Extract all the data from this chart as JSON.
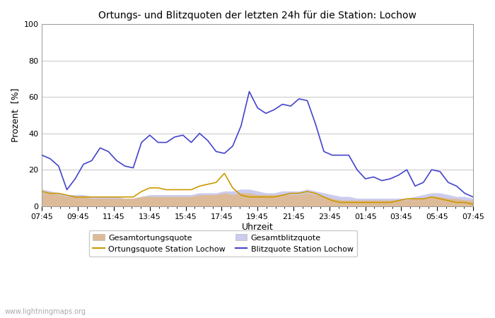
{
  "title": "Ortungs- und Blitzquoten der letzten 24h für die Station: Lochow",
  "xlabel": "Uhrzeit",
  "ylabel": "Prozent  [%]",
  "watermark": "www.lightningmaps.org",
  "x_ticks": [
    "07:45",
    "09:45",
    "11:45",
    "13:45",
    "15:45",
    "17:45",
    "19:45",
    "21:45",
    "23:45",
    "01:45",
    "03:45",
    "05:45",
    "07:45"
  ],
  "ylim": [
    0,
    100
  ],
  "yticks": [
    0,
    20,
    40,
    60,
    80,
    100
  ],
  "blitzquote_station": [
    28,
    26,
    22,
    9,
    15,
    23,
    25,
    32,
    30,
    25,
    22,
    21,
    35,
    39,
    35,
    35,
    38,
    39,
    35,
    40,
    36,
    30,
    29,
    33,
    44,
    63,
    54,
    51,
    53,
    56,
    55,
    59,
    58,
    45,
    30,
    28,
    28,
    28,
    20,
    15,
    16,
    14,
    15,
    17,
    20,
    11,
    13,
    20,
    19,
    13,
    11,
    7,
    5
  ],
  "ortungsquote_station": [
    8,
    7,
    7,
    6,
    5,
    5,
    5,
    5,
    5,
    5,
    5,
    5,
    8,
    10,
    10,
    9,
    9,
    9,
    9,
    11,
    12,
    13,
    18,
    10,
    6,
    5,
    5,
    5,
    5,
    6,
    7,
    7,
    8,
    7,
    5,
    3,
    2,
    2,
    2,
    2,
    2,
    2,
    2,
    3,
    4,
    4,
    4,
    5,
    4,
    3,
    2,
    2,
    1
  ],
  "gesamtblitzquote": [
    9,
    8,
    7,
    6,
    6,
    6,
    5,
    5,
    5,
    5,
    4,
    4,
    5,
    6,
    6,
    6,
    6,
    6,
    6,
    7,
    7,
    7,
    8,
    8,
    9,
    9,
    8,
    7,
    7,
    8,
    8,
    8,
    9,
    8,
    7,
    6,
    5,
    5,
    4,
    4,
    4,
    4,
    4,
    4,
    4,
    5,
    6,
    7,
    7,
    6,
    5,
    5,
    4
  ],
  "gesamtortungsquote": [
    7,
    7,
    6,
    5,
    5,
    5,
    4,
    4,
    4,
    4,
    4,
    4,
    5,
    5,
    5,
    5,
    5,
    5,
    5,
    6,
    6,
    6,
    7,
    6,
    7,
    7,
    6,
    6,
    6,
    6,
    6,
    6,
    7,
    6,
    5,
    4,
    3,
    3,
    3,
    3,
    3,
    3,
    3,
    3,
    3,
    4,
    4,
    5,
    5,
    4,
    4,
    3,
    3
  ],
  "blitzquote_color": "#4444cc",
  "ortungsquote_color": "#cc9900",
  "gesamtblitz_fill_color": "#ccccee",
  "gesamtortung_fill_color": "#ddbb99",
  "bg_color": "#ffffff",
  "grid_color": "#cccccc"
}
